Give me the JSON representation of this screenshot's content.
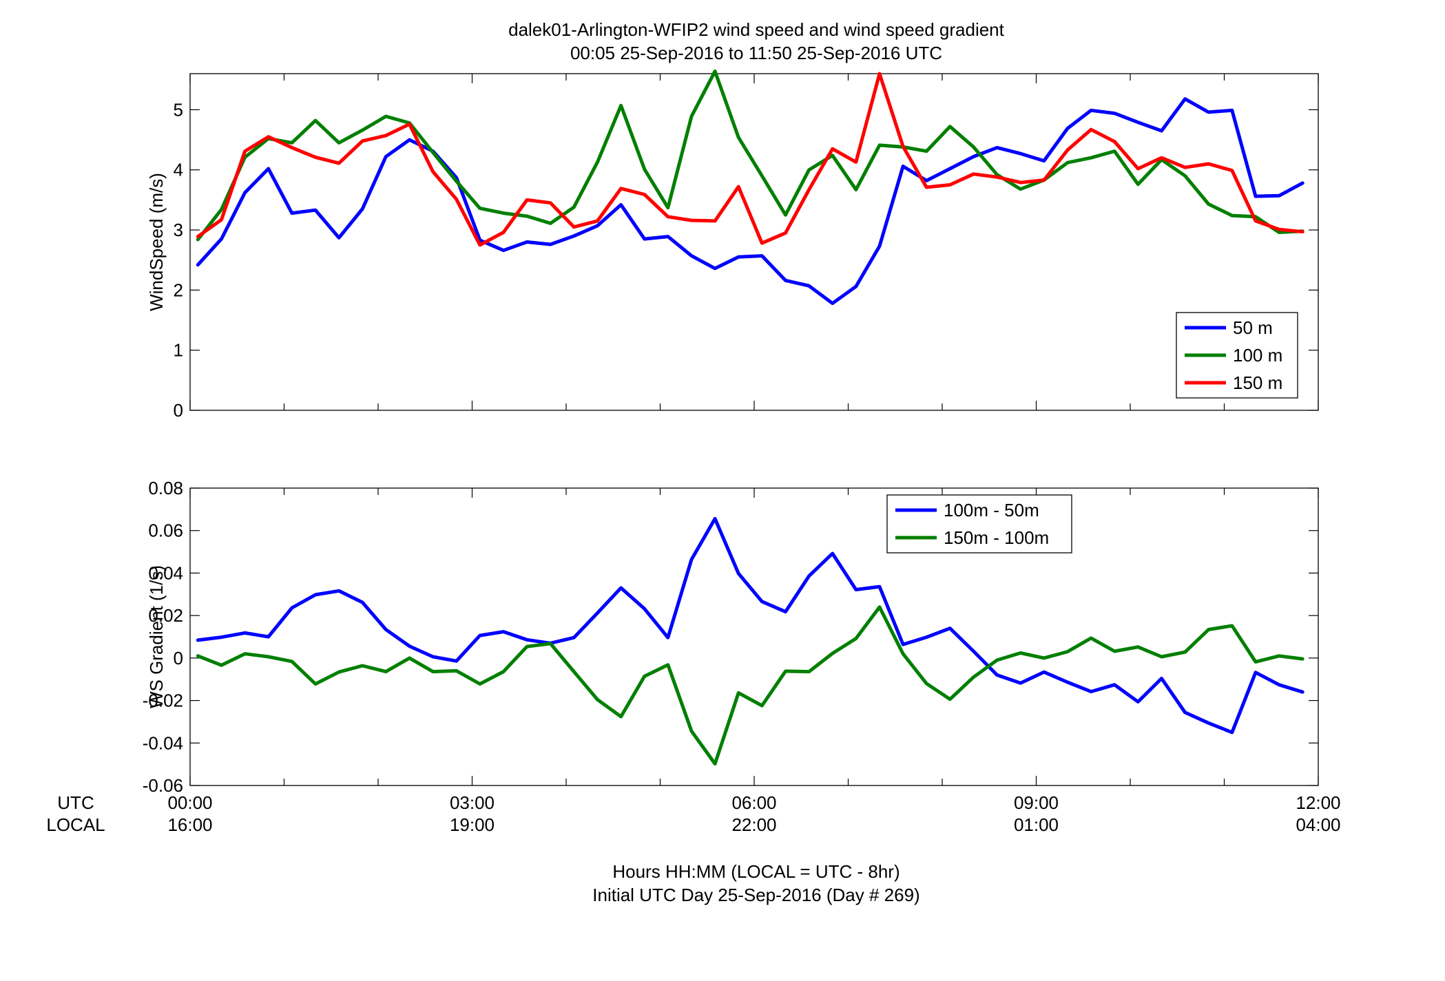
{
  "figure": {
    "title_line1": "dalek01-Arlington-WFIP2  wind speed and wind speed gradient",
    "title_line2": "00:05 25-Sep-2016 to 11:50 25-Sep-2016  UTC",
    "xlabel_line1": "Hours HH:MM  (LOCAL = UTC - 8hr)",
    "xlabel_line2": "Initial UTC Day 25-Sep-2016 (Day # 269)",
    "row_label_utc": "UTC",
    "row_label_local": "LOCAL"
  },
  "chart_data": [
    {
      "type": "line",
      "ylabel": "WindSpeed (m/s)",
      "xlim": [
        0,
        12
      ],
      "ylim": [
        0,
        5.6
      ],
      "yticks": [
        0,
        1,
        2,
        3,
        4,
        5
      ],
      "ytick_labels": [
        "0",
        "1",
        "2",
        "3",
        "4",
        "5"
      ],
      "xticks": [
        0,
        3,
        6,
        9,
        12
      ],
      "legend_position": "bottom-right",
      "x": [
        0.083,
        0.333,
        0.583,
        0.833,
        1.083,
        1.333,
        1.583,
        1.833,
        2.083,
        2.333,
        2.583,
        2.833,
        3.083,
        3.333,
        3.583,
        3.833,
        4.083,
        4.333,
        4.583,
        4.833,
        5.083,
        5.333,
        5.583,
        5.833,
        6.083,
        6.333,
        6.583,
        6.833,
        7.083,
        7.333,
        7.583,
        7.833,
        8.083,
        8.333,
        8.583,
        8.833,
        9.083,
        9.333,
        9.583,
        9.833,
        10.083,
        10.333,
        10.583,
        10.833,
        11.083,
        11.333,
        11.583,
        11.833
      ],
      "series": [
        {
          "name": "50 m",
          "color": "#0000ff",
          "values": [
            2.42,
            2.85,
            3.62,
            4.02,
            3.28,
            3.33,
            2.87,
            3.35,
            4.22,
            4.5,
            4.31,
            3.87,
            2.83,
            2.66,
            2.8,
            2.76,
            2.9,
            3.07,
            3.42,
            2.85,
            2.89,
            2.57,
            2.36,
            2.55,
            2.57,
            2.16,
            2.07,
            1.78,
            2.06,
            2.73,
            4.06,
            3.82,
            4.02,
            4.22,
            4.37,
            4.27,
            4.15,
            4.69,
            4.99,
            4.94,
            4.79,
            4.65,
            5.18,
            4.96,
            4.99,
            3.56,
            3.57,
            3.78
          ]
        },
        {
          "name": "100 m",
          "color": "#007f00",
          "values": [
            2.84,
            3.34,
            4.21,
            4.52,
            4.45,
            4.82,
            4.45,
            4.66,
            4.89,
            4.78,
            4.29,
            3.81,
            3.36,
            3.28,
            3.23,
            3.11,
            3.38,
            4.13,
            5.07,
            4.01,
            3.37,
            4.89,
            5.64,
            4.54,
            3.9,
            3.25,
            4.0,
            4.24,
            3.67,
            4.41,
            4.38,
            4.31,
            4.72,
            4.38,
            3.92,
            3.68,
            3.83,
            4.12,
            4.2,
            4.31,
            3.76,
            4.17,
            3.9,
            3.43,
            3.24,
            3.22,
            2.96,
            2.98
          ]
        },
        {
          "name": "150 m",
          "color": "#ff0000",
          "values": [
            2.89,
            3.17,
            4.31,
            4.55,
            4.37,
            4.21,
            4.11,
            4.48,
            4.57,
            4.76,
            3.97,
            3.51,
            2.75,
            2.96,
            3.5,
            3.45,
            3.05,
            3.15,
            3.69,
            3.59,
            3.22,
            3.16,
            3.15,
            3.72,
            2.78,
            2.95,
            3.67,
            4.35,
            4.13,
            5.6,
            4.39,
            3.71,
            3.75,
            3.93,
            3.88,
            3.79,
            3.83,
            4.33,
            4.67,
            4.47,
            4.02,
            4.2,
            4.04,
            4.1,
            3.99,
            3.15,
            3.01,
            2.97
          ]
        }
      ]
    },
    {
      "type": "line",
      "ylabel": "WS Gradient (1/s)",
      "xlim": [
        0,
        12
      ],
      "ylim": [
        -0.06,
        0.08
      ],
      "yticks": [
        -0.06,
        -0.04,
        -0.02,
        0,
        0.02,
        0.04,
        0.06,
        0.08
      ],
      "ytick_labels": [
        "-0.06",
        "-0.04",
        "-0.02",
        "0",
        "0.02",
        "0.04",
        "0.06",
        "0.08"
      ],
      "xticks": [
        0,
        3,
        6,
        9,
        12
      ],
      "xtick_labels_utc": [
        "00:00",
        "03:00",
        "06:00",
        "09:00",
        "12:00"
      ],
      "xtick_labels_local": [
        "16:00",
        "19:00",
        "22:00",
        "01:00",
        "04:00"
      ],
      "legend_position": "top-right",
      "x": [
        0.083,
        0.333,
        0.583,
        0.833,
        1.083,
        1.333,
        1.583,
        1.833,
        2.083,
        2.333,
        2.583,
        2.833,
        3.083,
        3.333,
        3.583,
        3.833,
        4.083,
        4.333,
        4.583,
        4.833,
        5.083,
        5.333,
        5.583,
        5.833,
        6.083,
        6.333,
        6.583,
        6.833,
        7.083,
        7.333,
        7.583,
        7.833,
        8.083,
        8.333,
        8.583,
        8.833,
        9.083,
        9.333,
        9.583,
        9.833,
        10.083,
        10.333,
        10.583,
        10.833,
        11.083,
        11.333,
        11.583,
        11.833
      ],
      "series": [
        {
          "name": "100m - 50m",
          "color": "#0000ff",
          "values": [
            0.0084,
            0.0098,
            0.0118,
            0.01,
            0.0236,
            0.0298,
            0.0316,
            0.0262,
            0.0134,
            0.0056,
            0.0006,
            -0.0014,
            0.0106,
            0.0124,
            0.0086,
            0.007,
            0.0096,
            0.0212,
            0.033,
            0.0232,
            0.0096,
            0.0464,
            0.0656,
            0.0398,
            0.0266,
            0.0218,
            0.0386,
            0.0492,
            0.0322,
            0.0336,
            0.0064,
            0.0098,
            0.014,
            0.0032,
            -0.008,
            -0.0118,
            -0.0066,
            -0.0114,
            -0.0158,
            -0.0126,
            -0.0206,
            -0.0096,
            -0.0256,
            -0.0306,
            -0.035,
            -0.0068,
            -0.0126,
            -0.016
          ]
        },
        {
          "name": "150m - 100m",
          "color": "#007f00",
          "values": [
            0.001,
            -0.0034,
            0.002,
            0.0006,
            -0.0016,
            -0.0122,
            -0.0066,
            -0.0036,
            -0.0064,
            0.0,
            -0.0064,
            -0.006,
            -0.0122,
            -0.0064,
            0.0054,
            0.0068,
            -0.0064,
            -0.0196,
            -0.0276,
            -0.0086,
            -0.0032,
            -0.0344,
            -0.0498,
            -0.0164,
            -0.0224,
            -0.0062,
            -0.0064,
            0.0022,
            0.0092,
            0.024,
            0.002,
            -0.012,
            -0.0194,
            -0.009,
            -0.001,
            0.0024,
            0.0,
            0.003,
            0.0094,
            0.0032,
            0.0052,
            0.0006,
            0.0028,
            0.0134,
            0.0152,
            -0.0018,
            0.001,
            -0.0004
          ]
        }
      ]
    }
  ]
}
